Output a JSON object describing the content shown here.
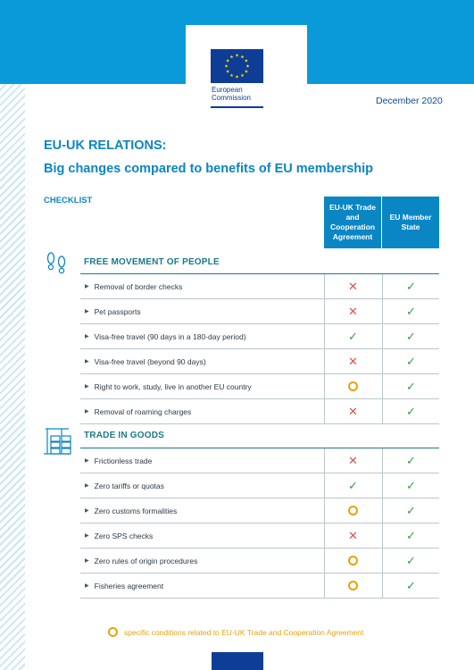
{
  "header": {
    "logo_line1": "European",
    "logo_line2": "Commission",
    "date": "December 2020",
    "colors": {
      "band": "#0a9ad9",
      "flag": "#0e3d96",
      "star": "#ffdd00"
    }
  },
  "title": "EU-UK RELATIONS:",
  "subtitle": "Big changes compared to benefits of EU membership",
  "checklist_label": "CHECKLIST",
  "columns": {
    "col1": "EU-UK Trade and Cooperation Agreement",
    "col2": "EU Member State"
  },
  "sections": [
    {
      "title": "FREE MOVEMENT OF PEOPLE",
      "icon": "footprints-icon",
      "rows": [
        {
          "label": "Removal of border checks",
          "uk": "cross",
          "eu": "check"
        },
        {
          "label": "Pet passports",
          "uk": "cross",
          "eu": "check"
        },
        {
          "label": "Visa-free travel (90 days in a 180-day period)",
          "uk": "check",
          "eu": "check"
        },
        {
          "label": "Visa-free travel (beyond 90 days)",
          "uk": "cross",
          "eu": "check"
        },
        {
          "label": "Right to work, study, live in another EU country",
          "uk": "circle",
          "eu": "check"
        },
        {
          "label": "Removal of roaming charges",
          "uk": "cross",
          "eu": "check"
        }
      ]
    },
    {
      "title": "TRADE IN GOODS",
      "icon": "crane-containers-icon",
      "rows": [
        {
          "label": "Frictionless trade",
          "uk": "cross",
          "eu": "check"
        },
        {
          "label": "Zero tariffs or quotas",
          "uk": "check",
          "eu": "check"
        },
        {
          "label": "Zero customs formalities",
          "uk": "circle",
          "eu": "check"
        },
        {
          "label": "Zero SPS checks",
          "uk": "cross",
          "eu": "check"
        },
        {
          "label": "Zero rules of origin procedures",
          "uk": "circle",
          "eu": "check"
        },
        {
          "label": "Fisheries agreement",
          "uk": "circle",
          "eu": "check"
        }
      ]
    }
  ],
  "marks": {
    "cross": "✕",
    "check": "✓",
    "circle": ""
  },
  "legend": "specific conditions related to EU-UK Trade and Cooperation Agreement"
}
